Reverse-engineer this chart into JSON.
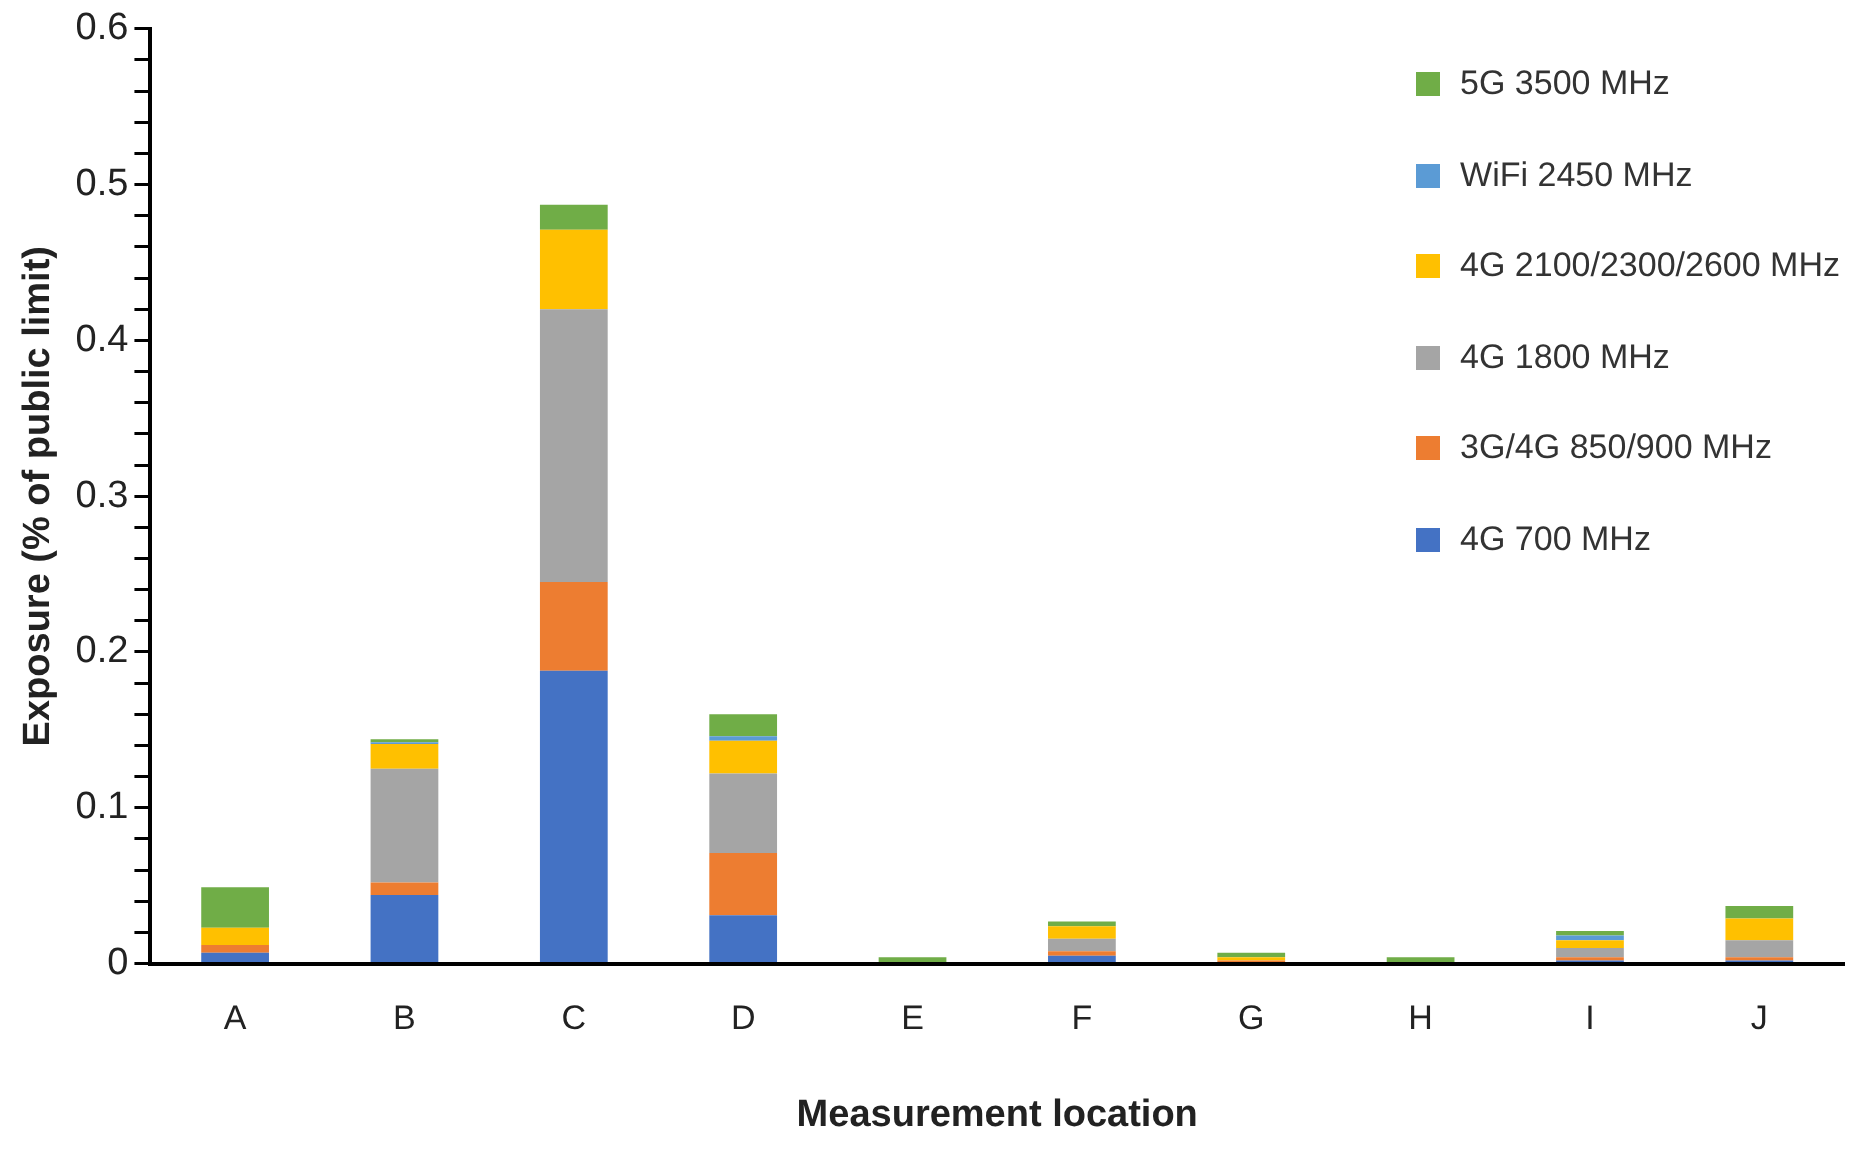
{
  "chart_data": {
    "type": "bar",
    "stacked": true,
    "xlabel": "Measurement location",
    "ylabel": "Exposure (% of public limit)",
    "categories": [
      "A",
      "B",
      "C",
      "D",
      "E",
      "F",
      "G",
      "H",
      "I",
      "J"
    ],
    "series": [
      {
        "name": "4G 700 MHz",
        "color": "#4472c4",
        "values": [
          0.007,
          0.044,
          0.188,
          0.031,
          0,
          0.005,
          null,
          0,
          0.002,
          0.002
        ]
      },
      {
        "name": "3G/4G 850/900 MHz",
        "color": "#ed7d31",
        "values": [
          0.005,
          0.008,
          0.057,
          0.04,
          0,
          0.003,
          0.002,
          0,
          0.002,
          0.002
        ]
      },
      {
        "name": "4G 1800 MHz",
        "color": "#a5a5a5",
        "values": [
          0,
          0.073,
          0.175,
          0.051,
          0,
          0.008,
          null,
          null,
          0.006,
          0.011
        ]
      },
      {
        "name": "4G 2100/2300/2600 MHz",
        "color": "#ffc000",
        "values": [
          0.011,
          0.016,
          0.051,
          0.021,
          0,
          0.008,
          0.002,
          0,
          0.005,
          0.014
        ]
      },
      {
        "name": "WiFi 2450 MHz",
        "color": "#5b9bd5",
        "values": [
          0,
          0.001,
          0,
          0.003,
          0,
          0,
          0,
          0,
          0.003,
          0
        ]
      },
      {
        "name": "5G 3500 MHz",
        "color": "#70ad47",
        "values": [
          0.026,
          0.002,
          0.016,
          0.014,
          0.004,
          0.003,
          0.003,
          0.004,
          0.003,
          0.008
        ]
      }
    ],
    "ylim": [
      0,
      0.6
    ],
    "yticks": [
      0,
      {
        "value": 0.02,
        "label": null
      },
      {
        "value": 0.04,
        "label": null
      },
      {
        "value": 0.06,
        "label": null
      },
      {
        "value": 0.08,
        "label": null
      },
      0.1,
      {
        "value": 0.12,
        "label": null
      },
      {
        "value": 0.14,
        "label": null
      },
      {
        "value": 0.16,
        "label": null
      },
      {
        "value": 0.18,
        "label": null
      },
      0.2,
      {
        "value": 0.22,
        "label": null
      },
      {
        "value": 0.24,
        "label": null
      },
      {
        "value": 0.26,
        "label": null
      },
      {
        "value": 0.28,
        "label": null
      },
      0.3,
      {
        "value": 0.32,
        "label": null
      },
      {
        "value": 0.34,
        "label": null
      },
      {
        "value": 0.36,
        "label": null
      },
      {
        "value": 0.38,
        "label": null
      },
      0.4,
      {
        "value": 0.42,
        "label": null
      },
      {
        "value": 0.44,
        "label": null
      },
      {
        "value": 0.46,
        "label": null
      },
      {
        "value": 0.48,
        "label": null
      },
      0.5,
      {
        "value": 0.52,
        "label": null
      },
      {
        "value": 0.54,
        "label": null
      },
      {
        "value": 0.56,
        "label": null
      },
      {
        "value": 0.58,
        "label": null
      },
      0.6
    ],
    "grid": false,
    "legend": "top right"
  }
}
